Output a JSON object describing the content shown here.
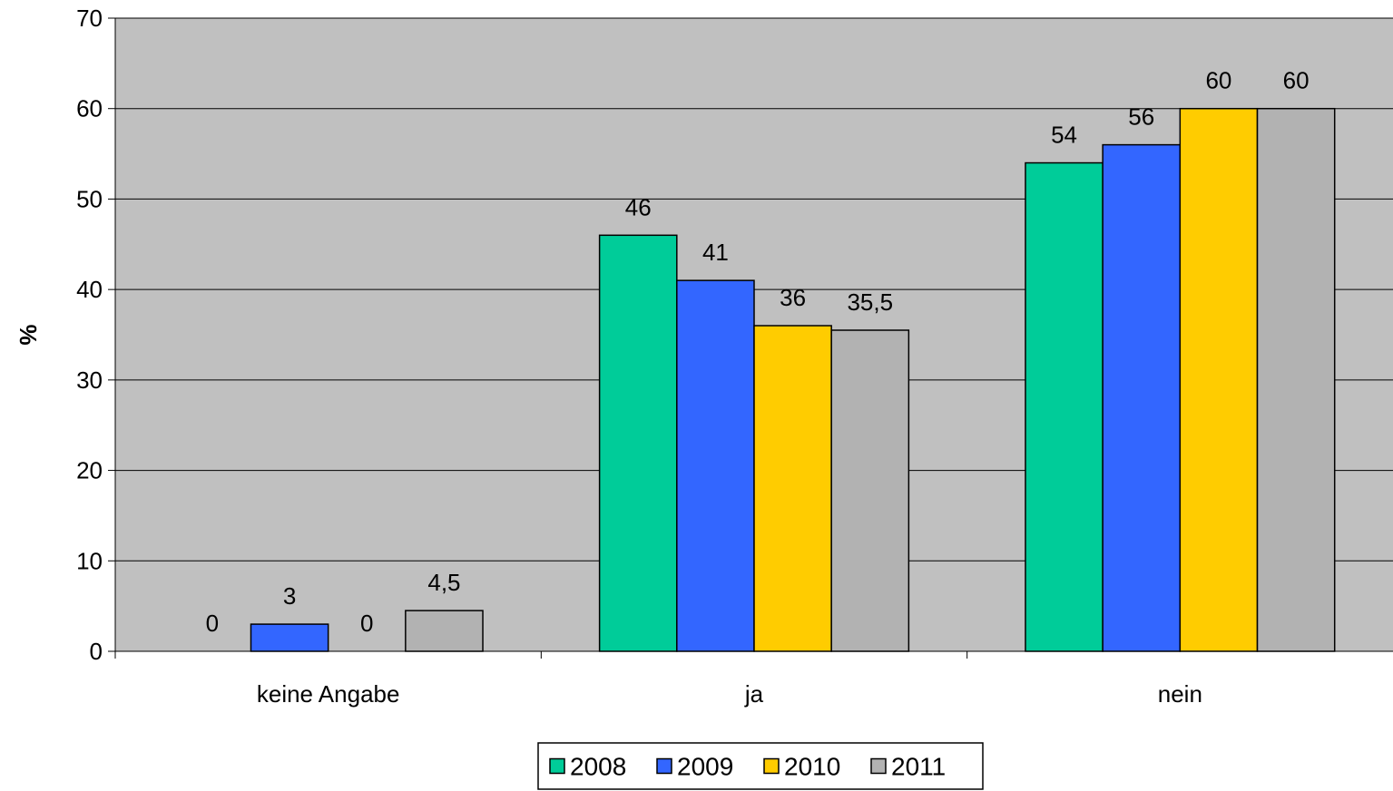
{
  "chart_data": {
    "type": "bar",
    "title": "",
    "xlabel": "",
    "ylabel": "%",
    "ylim": [
      0,
      70
    ],
    "yticks": [
      0,
      10,
      20,
      30,
      40,
      50,
      60,
      70
    ],
    "grid": true,
    "legend_position": "bottom",
    "plot_background": "#C0C0C0",
    "categories": [
      "keine Angabe",
      "ja",
      "nein"
    ],
    "series": [
      {
        "name": "2008",
        "color": "#00CC99",
        "values": [
          0,
          46,
          54
        ],
        "labels": [
          "0",
          "46",
          "54"
        ]
      },
      {
        "name": "2009",
        "color": "#3366FF",
        "values": [
          3,
          41,
          56
        ],
        "labels": [
          "3",
          "41",
          "56"
        ]
      },
      {
        "name": "2010",
        "color": "#FFCC00",
        "values": [
          0,
          36,
          60
        ],
        "labels": [
          "0",
          "36",
          "60"
        ]
      },
      {
        "name": "2011",
        "color": "#B2B2B2",
        "values": [
          4.5,
          35.5,
          60
        ],
        "labels": [
          "4,5",
          "35,5",
          "60"
        ]
      }
    ]
  }
}
